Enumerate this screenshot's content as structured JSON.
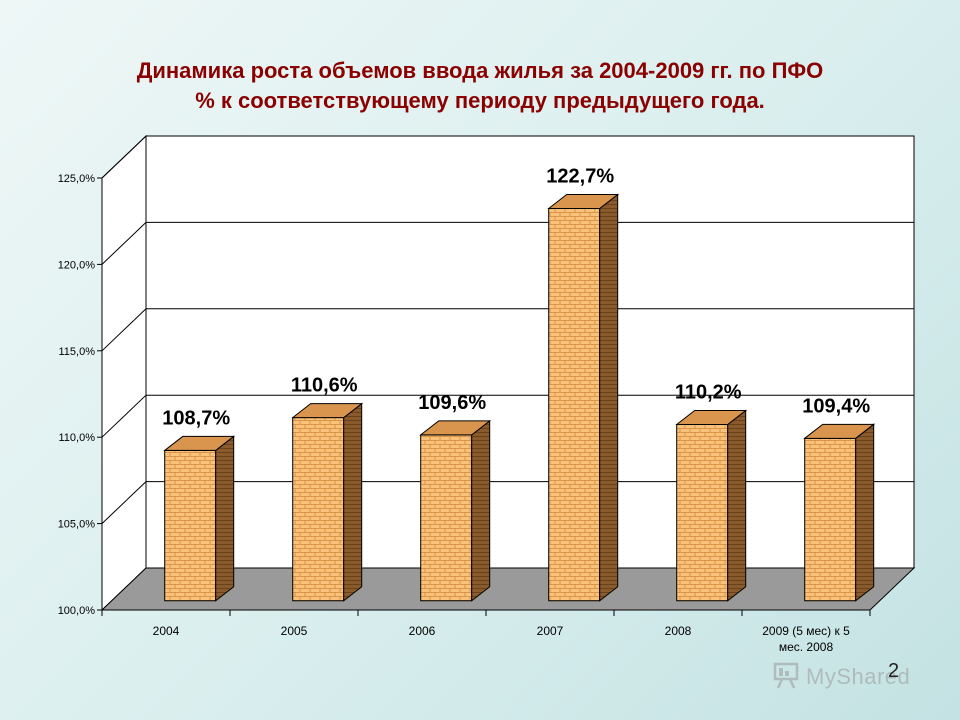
{
  "chart_data": {
    "type": "bar",
    "title": "Динамика роста объемов ввода жилья за 2004-2009 гг. по ПФО",
    "subtitle": "% к соответствующему периоду предыдущего года.",
    "categories": [
      "2004",
      "2005",
      "2006",
      "2007",
      "2008",
      "2009 (5 мес) к 5 мес. 2008"
    ],
    "category_lines": [
      [
        "2004"
      ],
      [
        "2005"
      ],
      [
        "2006"
      ],
      [
        "2007"
      ],
      [
        "2008"
      ],
      [
        "2009 (5 мес) к 5",
        "мес. 2008"
      ]
    ],
    "values": [
      108.7,
      110.6,
      109.6,
      122.7,
      110.2,
      109.4
    ],
    "data_labels": [
      "108,7%",
      "110,6%",
      "109,6%",
      "122,7%",
      "110,2%",
      "109,4%"
    ],
    "yticks": [
      100,
      105,
      110,
      115,
      120,
      125
    ],
    "ytick_labels": [
      "100,0%",
      "105,0%",
      "110,0%",
      "115,0%",
      "120,0%",
      "125,0%"
    ],
    "ylim": [
      100,
      125
    ],
    "grid": true,
    "legend": "none",
    "style": "3d-bar",
    "colors": {
      "bar_front": "#f9c17a",
      "bar_side": "#8a5a2b",
      "bar_top": "#d9954e",
      "floor": "#9a9a9a",
      "grid": "#000000"
    }
  },
  "slide_number": "2",
  "watermark": {
    "text": "MyShared",
    "icon": "presentation-board-icon"
  }
}
